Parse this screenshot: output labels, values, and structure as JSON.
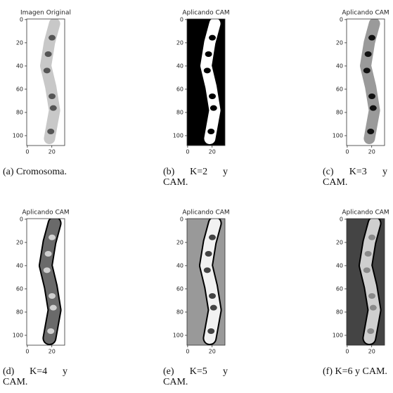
{
  "panels": [
    {
      "title": "Imagen Original",
      "caption": "(a) Cromosoma.",
      "xlim": [
        -0.5,
        30.5
      ],
      "ylim": [
        -0.5,
        108.5
      ],
      "xticks": [
        0,
        20
      ],
      "yticks": [
        0,
        20,
        40,
        60,
        80,
        100
      ]
    },
    {
      "title": "Aplicando CAM",
      "caption": "(b) K=2 y CAM.",
      "xlim": [
        -0.5,
        30.5
      ],
      "ylim": [
        -0.5,
        108.5
      ],
      "xticks": [
        0,
        20
      ],
      "yticks": [
        0,
        20,
        40,
        60,
        80,
        100
      ]
    },
    {
      "title": "Aplicando CAM",
      "caption": "(c) K=3 y CAM.",
      "xlim": [
        -0.5,
        30.5
      ],
      "ylim": [
        -0.5,
        108.5
      ],
      "xticks": [
        0,
        20
      ],
      "yticks": [
        0,
        20,
        40,
        60,
        80,
        100
      ]
    },
    {
      "title": "Aplicando CAM",
      "caption": "(d) K=4 y CAM.",
      "xlim": [
        -0.5,
        30.5
      ],
      "ylim": [
        -0.5,
        108.5
      ],
      "xticks": [
        0,
        20
      ],
      "yticks": [
        0,
        20,
        40,
        60,
        80,
        100
      ]
    },
    {
      "title": "Aplicando CAM",
      "caption": "(e) K=5 y CAM.",
      "xlim": [
        -0.5,
        30.5
      ],
      "ylim": [
        -0.5,
        108.5
      ],
      "xticks": [
        0,
        20
      ],
      "yticks": [
        0,
        20,
        40,
        60,
        80,
        100
      ]
    },
    {
      "title": "Aplicando CAM",
      "caption": "(f) K=6 y CAM.",
      "xlim": [
        -0.5,
        30.5
      ],
      "ylim": [
        -0.5,
        108.5
      ],
      "xticks": [
        0,
        20
      ],
      "yticks": [
        0,
        20,
        40,
        60,
        80,
        100
      ]
    }
  ]
}
